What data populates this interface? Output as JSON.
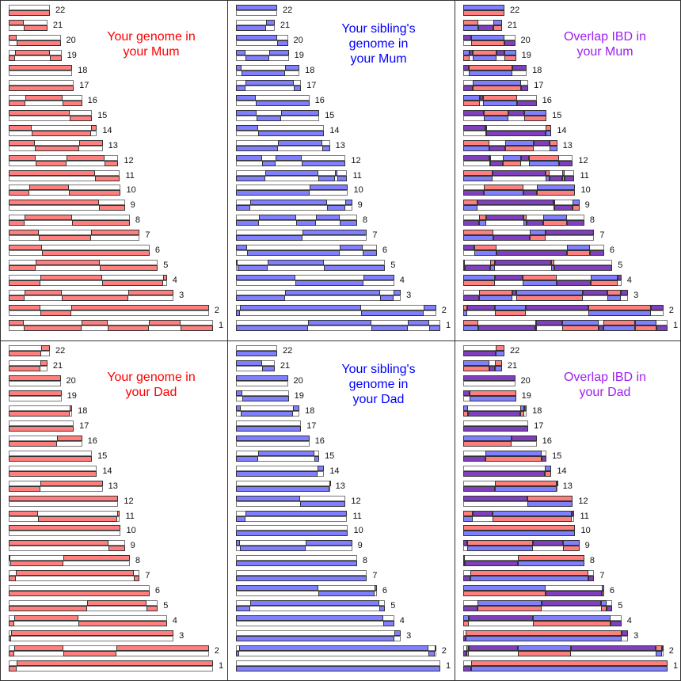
{
  "colors": {
    "you": "#ff7f7f",
    "sibling": "#7f7fff",
    "both": "#7f3fbf",
    "title_you": "#ff0000",
    "title_sibling": "#0000ff",
    "title_overlap": "#a020f0"
  },
  "panels": [
    {
      "id": "you-mum",
      "kind": "you",
      "parent": "mum",
      "title_lines": [
        "Your genome in",
        "your Mum"
      ]
    },
    {
      "id": "sibling-mum",
      "kind": "sibling",
      "parent": "mum",
      "title_lines": [
        "Your sibling's",
        "genome in",
        "your Mum"
      ]
    },
    {
      "id": "overlap-mum",
      "kind": "overlap",
      "parent": "mum",
      "title_lines": [
        "Overlap IBD in",
        "your Mum"
      ]
    },
    {
      "id": "you-dad",
      "kind": "you",
      "parent": "dad",
      "title_lines": [
        "Your genome in",
        "your Dad"
      ]
    },
    {
      "id": "sibling-dad",
      "kind": "sibling",
      "parent": "dad",
      "title_lines": [
        "Your sibling's",
        "genome in",
        "your Dad"
      ]
    },
    {
      "id": "overlap-dad",
      "kind": "overlap",
      "parent": "dad",
      "title_lines": [
        "Overlap IBD in",
        "your Dad"
      ]
    }
  ],
  "chromosomes": [
    {
      "label": "1",
      "length": 248
    },
    {
      "label": "2",
      "length": 243
    },
    {
      "label": "3",
      "length": 200
    },
    {
      "label": "4",
      "length": 192
    },
    {
      "label": "5",
      "length": 181
    },
    {
      "label": "6",
      "length": 171
    },
    {
      "label": "7",
      "length": 159
    },
    {
      "label": "8",
      "length": 147
    },
    {
      "label": "9",
      "length": 141
    },
    {
      "label": "10",
      "length": 136
    },
    {
      "label": "11",
      "length": 135
    },
    {
      "label": "12",
      "length": 133
    },
    {
      "label": "13",
      "length": 114
    },
    {
      "label": "14",
      "length": 107
    },
    {
      "label": "15",
      "length": 101
    },
    {
      "label": "16",
      "length": 89
    },
    {
      "label": "17",
      "length": 79
    },
    {
      "label": "18",
      "length": 77
    },
    {
      "label": "19",
      "length": 64
    },
    {
      "label": "20",
      "length": 63
    },
    {
      "label": "21",
      "length": 47
    },
    {
      "label": "22",
      "length": 50
    }
  ],
  "inheritance": {
    "mum": {
      "you": [
        {
          "s": 0,
          "b": [
            18,
            88,
            120,
            170,
            209
          ]
        },
        {
          "s": 0,
          "b": [
            38,
            76
          ]
        },
        {
          "s": 1,
          "b": [
            19,
            64,
            145
          ]
        },
        {
          "s": 1,
          "b": [
            38,
            113,
            187
          ]
        },
        {
          "s": 1,
          "b": [
            33,
            111
          ]
        },
        {
          "s": 0,
          "b": [
            40
          ]
        },
        {
          "s": 0,
          "b": [
            37,
            100
          ]
        },
        {
          "s": 1,
          "b": [
            19,
            77
          ]
        },
        {
          "s": 0,
          "b": [
            110
          ]
        },
        {
          "s": 1,
          "b": [
            25,
            73
          ]
        },
        {
          "s": 0,
          "b": [
            105
          ]
        },
        {
          "s": 0,
          "b": [
            33,
            70,
            116
          ]
        },
        {
          "s": 0,
          "b": [
            32,
            86
          ]
        },
        {
          "s": 0,
          "b": [
            28,
            100
          ]
        },
        {
          "s": 0,
          "b": [
            74
          ]
        },
        {
          "s": 1,
          "b": [
            20,
            65
          ]
        },
        {
          "s": 1,
          "b": []
        },
        {
          "s": 0,
          "b": []
        },
        {
          "s": 1,
          "b": [
            8,
            50
          ]
        },
        {
          "s": 0,
          "b": [
            10
          ]
        },
        {
          "s": 0,
          "b": [
            18
          ]
        },
        {
          "s": 1,
          "b": []
        }
      ],
      "sibling": [
        {
          "s": 1,
          "b": [
            87,
            164,
            209,
            235
          ]
        },
        {
          "s": 1,
          "b": [
            5,
            152,
            228
          ]
        },
        {
          "s": 1,
          "b": [
            60,
            175,
            191
          ]
        },
        {
          "s": 0,
          "b": [
            72,
            155
          ]
        },
        {
          "s": 0,
          "b": [
            2,
            38,
            107
          ]
        },
        {
          "s": 0,
          "b": [
            13,
            126,
            154
          ]
        },
        {
          "s": 1,
          "b": [
            81
          ]
        },
        {
          "s": 1,
          "b": [
            28,
            73,
            97,
            126
          ]
        },
        {
          "s": 1,
          "b": [
            17,
            111,
            133
          ]
        },
        {
          "s": 1,
          "b": [
            89
          ]
        },
        {
          "s": 1,
          "b": [
            36,
            100,
            120,
            123
          ]
        },
        {
          "s": 0,
          "b": [
            32,
            48,
            80
          ]
        },
        {
          "s": 1,
          "b": [
            51,
            105
          ]
        },
        {
          "s": 0,
          "b": [
            27
          ]
        },
        {
          "s": 0,
          "b": [
            25,
            55
          ]
        },
        {
          "s": 0,
          "b": [
            24
          ]
        },
        {
          "s": 1,
          "b": [
            12,
            70
          ]
        },
        {
          "s": 0,
          "b": [
            7,
            60
          ]
        },
        {
          "s": 0,
          "b": [
            12,
            40
          ]
        },
        {
          "s": 0,
          "b": [
            50
          ]
        },
        {
          "s": 1,
          "b": [
            37
          ]
        },
        {
          "s": 0,
          "b": []
        }
      ]
    },
    "dad": {
      "you": [
        {
          "s": 1,
          "b": [
            10
          ]
        },
        {
          "s": 1,
          "b": [
            7,
            66,
            131
          ]
        },
        {
          "s": 1,
          "b": [
            3
          ]
        },
        {
          "s": 1,
          "b": [
            7,
            85
          ]
        },
        {
          "s": 1,
          "b": [
            95,
            167
          ]
        },
        {
          "s": 1,
          "b": []
        },
        {
          "s": 1,
          "b": [
            9,
            152
          ]
        },
        {
          "s": 0,
          "b": [
            2,
            66
          ]
        },
        {
          "s": 0,
          "b": [
            121
          ]
        },
        {
          "s": 0,
          "b": []
        },
        {
          "s": 0,
          "b": [
            36,
            132
          ]
        },
        {
          "s": 0,
          "b": []
        },
        {
          "s": 1,
          "b": [
            38
          ]
        },
        {
          "s": 1,
          "b": []
        },
        {
          "s": 1,
          "b": []
        },
        {
          "s": 1,
          "b": [
            59
          ]
        },
        {
          "s": 1,
          "b": []
        },
        {
          "s": 1,
          "b": [
            74
          ]
        },
        {
          "s": 0,
          "b": []
        },
        {
          "s": 0,
          "b": []
        },
        {
          "s": 1,
          "b": [
            38
          ]
        },
        {
          "s": 1,
          "b": [
            39
          ]
        }
      ],
      "sibling": [
        {
          "s": 1,
          "b": []
        },
        {
          "s": 1,
          "b": [
            4,
            234,
            241
          ]
        },
        {
          "s": 1,
          "b": [
            192
          ]
        },
        {
          "s": 0,
          "b": [
            179
          ]
        },
        {
          "s": 1,
          "b": [
            17,
            174
          ]
        },
        {
          "s": 0,
          "b": [
            100,
            168
          ]
        },
        {
          "s": 1,
          "b": []
        },
        {
          "s": 1,
          "b": []
        },
        {
          "s": 0,
          "b": [
            5,
            85
          ]
        },
        {
          "s": 1,
          "b": []
        },
        {
          "s": 1,
          "b": [
            12
          ]
        },
        {
          "s": 0,
          "b": [
            78
          ]
        },
        {
          "s": 1,
          "b": [
            113
          ]
        },
        {
          "s": 1,
          "b": [
            99
          ]
        },
        {
          "s": 1,
          "b": [
            27,
            95
          ]
        },
        {
          "s": 0,
          "b": []
        },
        {
          "s": 1,
          "b": []
        },
        {
          "s": 0,
          "b": [
            6,
            69
          ]
        },
        {
          "s": 0,
          "b": [
            8
          ]
        },
        {
          "s": 0,
          "b": []
        },
        {
          "s": 0,
          "b": [
            32
          ]
        },
        {
          "s": 1,
          "b": []
        }
      ]
    }
  }
}
